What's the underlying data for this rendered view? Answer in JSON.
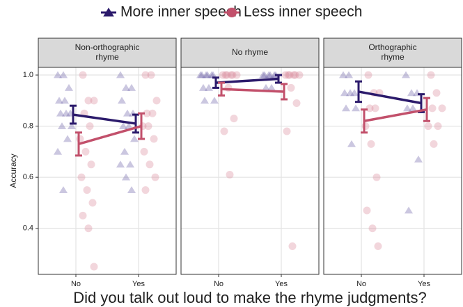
{
  "xlabel": "Did you talk out loud to make the rhyme judgments?",
  "ylabel": "Accuracy",
  "chart_data": [
    {
      "type": "dot_line",
      "title": [
        "Non-orthographic",
        "rhyme"
      ],
      "categories": [
        "No",
        "Yes"
      ],
      "xlim": [
        0.4,
        2.6
      ],
      "ylim": [
        0.22,
        1.03
      ],
      "yticks": [
        {
          "value": 1,
          "label": "1.0"
        },
        0.8,
        0.6,
        0.4
      ],
      "grid": true,
      "series": [
        {
          "name": "More inner speech",
          "color": "#2b1a6b",
          "point_color": "#6a5fa6",
          "marker": "triangle",
          "values": [
            0.845,
            0.81
          ],
          "errors": [
            0.035,
            0.035
          ],
          "points": [
            [
              1.0,
              1.0,
              0.95,
              0.9,
              0.9,
              0.85,
              0.85,
              0.85,
              0.8,
              0.8,
              0.75,
              0.7,
              0.55
            ],
            [
              1.0,
              0.95,
              0.95,
              0.9,
              0.85,
              0.85,
              0.8,
              0.8,
              0.75,
              0.7,
              0.65,
              0.65,
              0.6,
              0.55
            ]
          ]
        },
        {
          "name": "Less inner speech",
          "color": "#c2506b",
          "point_color": "#d98a9c",
          "marker": "circle",
          "values": [
            0.73,
            0.8
          ],
          "errors": [
            0.045,
            0.05
          ],
          "points": [
            [
              1.0,
              0.9,
              0.9,
              0.85,
              0.8,
              0.75,
              0.7,
              0.65,
              0.6,
              0.55,
              0.5,
              0.45,
              0.4,
              0.25
            ],
            [
              1.0,
              1.0,
              0.9,
              0.85,
              0.85,
              0.8,
              0.8,
              0.75,
              0.7,
              0.65,
              0.6,
              0.55
            ]
          ]
        }
      ]
    },
    {
      "type": "dot_line",
      "title": [
        "No rhyme"
      ],
      "categories": [
        "No",
        "Yes"
      ],
      "xlim": [
        0.4,
        2.6
      ],
      "ylim": [
        0.22,
        1.03
      ],
      "yticks": [
        1,
        0.8,
        0.6,
        0.4
      ],
      "grid": true,
      "series": [
        {
          "color": "#2b1a6b",
          "point_color": "#6a5fa6",
          "marker": "triangle",
          "values": [
            0.97,
            0.985
          ],
          "errors": [
            0.02,
            0.015
          ],
          "points": [
            [
              1.0,
              1.0,
              1.0,
              1.0,
              1.0,
              1.0,
              0.95,
              0.95,
              0.9,
              0.9
            ],
            [
              1.0,
              1.0,
              1.0,
              1.0,
              1.0,
              1.0,
              0.95,
              0.95
            ]
          ]
        },
        {
          "color": "#c2506b",
          "point_color": "#d98a9c",
          "marker": "circle",
          "values": [
            0.945,
            0.935
          ],
          "errors": [
            0.025,
            0.03
          ],
          "points": [
            [
              1.0,
              1.0,
              1.0,
              1.0,
              1.0,
              1.0,
              0.95,
              0.83,
              0.78,
              0.61
            ],
            [
              1.0,
              1.0,
              1.0,
              1.0,
              1.0,
              1.0,
              0.95,
              0.89,
              0.78,
              0.33
            ]
          ]
        }
      ]
    },
    {
      "type": "dot_line",
      "title": [
        "Orthographic",
        "rhyme"
      ],
      "categories": [
        "No",
        "Yes"
      ],
      "xlim": [
        0.4,
        2.6
      ],
      "ylim": [
        0.22,
        1.03
      ],
      "yticks": [
        1,
        0.8,
        0.6,
        0.4
      ],
      "grid": true,
      "series": [
        {
          "color": "#2b1a6b",
          "point_color": "#6a5fa6",
          "marker": "triangle",
          "values": [
            0.935,
            0.89
          ],
          "errors": [
            0.04,
            0.035
          ],
          "points": [
            [
              1.0,
              1.0,
              0.93,
              0.93,
              0.93,
              0.87,
              0.87,
              0.73
            ],
            [
              1.0,
              0.93,
              0.93,
              0.87,
              0.87,
              0.67,
              0.47
            ]
          ]
        },
        {
          "color": "#c2506b",
          "point_color": "#d98a9c",
          "marker": "circle",
          "values": [
            0.82,
            0.865
          ],
          "errors": [
            0.045,
            0.045
          ],
          "points": [
            [
              1.0,
              0.93,
              0.93,
              0.87,
              0.87,
              0.8,
              0.73,
              0.6,
              0.47,
              0.4,
              0.33
            ],
            [
              1.0,
              0.93,
              0.87,
              0.87,
              0.8,
              0.8,
              0.73
            ]
          ]
        }
      ]
    }
  ]
}
